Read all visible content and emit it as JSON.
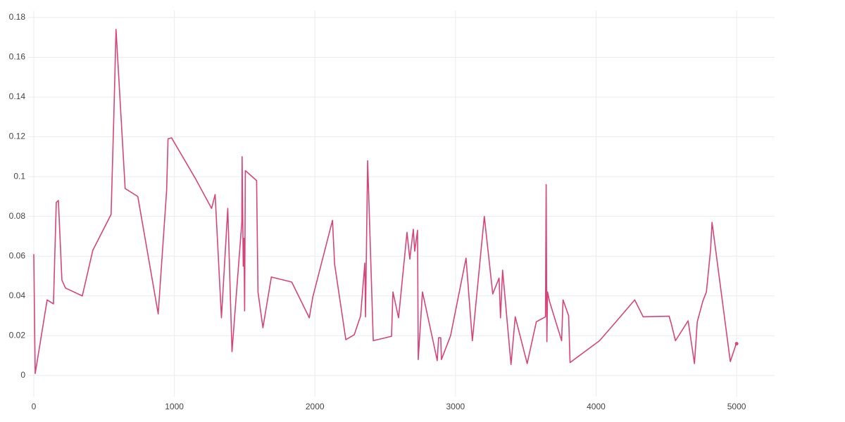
{
  "chart_data": {
    "type": "line",
    "series": [
      {
        "color": "#d6457a",
        "x": [
          0,
          10,
          95,
          140,
          160,
          175,
          200,
          225,
          345,
          420,
          550,
          570,
          585,
          650,
          740,
          885,
          945,
          955,
          980,
          1150,
          1265,
          1290,
          1335,
          1380,
          1410,
          1480,
          1482,
          1490,
          1495,
          1500,
          1505,
          1585,
          1595,
          1630,
          1690,
          1835,
          1960,
          1985,
          2125,
          2140,
          2220,
          2280,
          2325,
          2355,
          2360,
          2375,
          2415,
          2545,
          2555,
          2595,
          2655,
          2675,
          2700,
          2710,
          2730,
          2735,
          2765,
          2840,
          2870,
          2880,
          2895,
          2900,
          2965,
          3075,
          3120,
          3205,
          3265,
          3310,
          3320,
          3335,
          3395,
          3425,
          3510,
          3575,
          3640,
          3645,
          3650,
          3655,
          3670,
          3755,
          3765,
          3805,
          3815,
          4025,
          4160,
          4275,
          4335,
          4520,
          4535,
          4565,
          4655,
          4700,
          4720,
          4760,
          4785,
          4815,
          4825,
          4955,
          4995,
          5000
        ],
        "values": [
          0.061,
          0.001,
          0.038,
          0.036,
          0.087,
          0.088,
          0.048,
          0.044,
          0.04,
          0.063,
          0.081,
          0.132,
          0.174,
          0.094,
          0.09,
          0.031,
          0.093,
          0.119,
          0.1195,
          0.099,
          0.084,
          0.091,
          0.029,
          0.084,
          0.012,
          0.077,
          0.11,
          0.055,
          0.069,
          0.0325,
          0.103,
          0.098,
          0.042,
          0.024,
          0.0495,
          0.047,
          0.029,
          0.0395,
          0.078,
          0.056,
          0.018,
          0.0205,
          0.03,
          0.0565,
          0.0295,
          0.108,
          0.0175,
          0.0197,
          0.042,
          0.029,
          0.072,
          0.0585,
          0.0735,
          0.0625,
          0.073,
          0.008,
          0.042,
          0.0175,
          0.0075,
          0.019,
          0.019,
          0.008,
          0.02,
          0.059,
          0.0175,
          0.08,
          0.041,
          0.049,
          0.029,
          0.053,
          0.0055,
          0.0295,
          0.006,
          0.027,
          0.0295,
          0.096,
          0.017,
          0.042,
          0.037,
          0.0175,
          0.038,
          0.03,
          0.0065,
          0.0175,
          0.0285,
          0.038,
          0.0295,
          0.0298,
          0.026,
          0.0175,
          0.0275,
          0.006,
          0.027,
          0.0375,
          0.042,
          0.0635,
          0.077,
          0.007,
          0.0155,
          0.016
        ]
      }
    ],
    "xlim": [
      -40,
      5270
    ],
    "xticks": [
      0,
      1000,
      2000,
      3000,
      4000,
      5000
    ],
    "ylim": [
      -0.005,
      0.1835
    ],
    "yticks": [
      0,
      0.02,
      0.04,
      0.06,
      0.08,
      0.1,
      0.12,
      0.14,
      0.16,
      0.18
    ],
    "grid": true
  }
}
